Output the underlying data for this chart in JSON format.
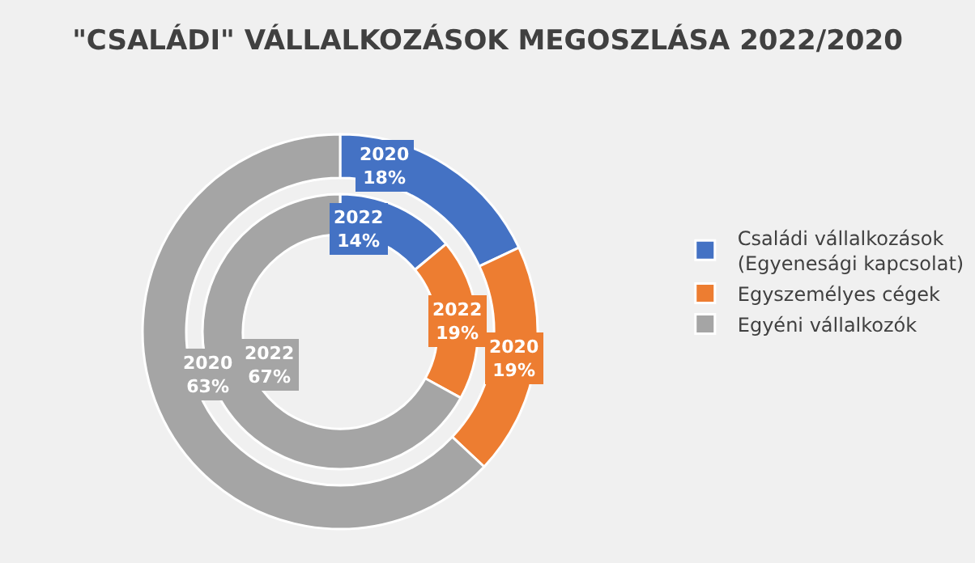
{
  "chart_data": {
    "type": "donut",
    "title": "\"CSALÁDI\" VÁLLALKOZÁSOK MEGOSZLÁSA 2022/2020",
    "categories": [
      "Családi vállalkozások\n(Egyenesági kapcsolat)",
      "Egyszemélyes cégek",
      "Egyéni vállalkozók"
    ],
    "colors": [
      "#4472c4",
      "#ed7d31",
      "#a5a5a5"
    ],
    "series": [
      {
        "values": [
          18,
          19,
          63
        ],
        "value_labels": [
          "2020\n18%",
          "2020\n19%",
          "2020\n63%"
        ]
      },
      {
        "values": [
          14,
          19,
          67
        ],
        "value_labels": [
          "2022\n14%",
          "2022\n19%",
          "2022\n67%"
        ]
      }
    ],
    "legend": "right"
  }
}
